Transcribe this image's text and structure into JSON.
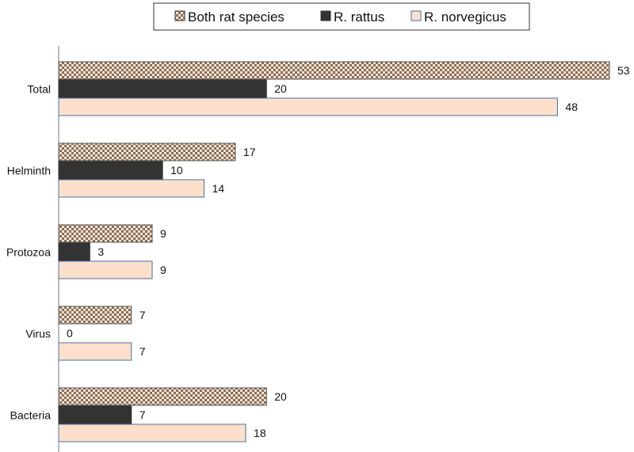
{
  "chart_data": {
    "type": "bar",
    "orientation": "horizontal",
    "categories": [
      "Total",
      "Helminth",
      "Protozoa",
      "Virus",
      "Bacteria"
    ],
    "series": [
      {
        "name": "Both rat species",
        "values": [
          53,
          17,
          9,
          7,
          20
        ],
        "pattern": "checker",
        "color": "#8a6d5a",
        "fill_bg": "#f3e3d2"
      },
      {
        "name": "R. rattus",
        "values": [
          20,
          10,
          3,
          0,
          7
        ],
        "color": "#333333"
      },
      {
        "name": "R. norvegicus",
        "values": [
          48,
          14,
          9,
          7,
          18
        ],
        "color": "#fde0cb"
      }
    ],
    "xlim": [
      0,
      53
    ],
    "data_labels": true,
    "grid": false,
    "legend_position": "top-center",
    "title": "",
    "xlabel": "",
    "ylabel": ""
  }
}
